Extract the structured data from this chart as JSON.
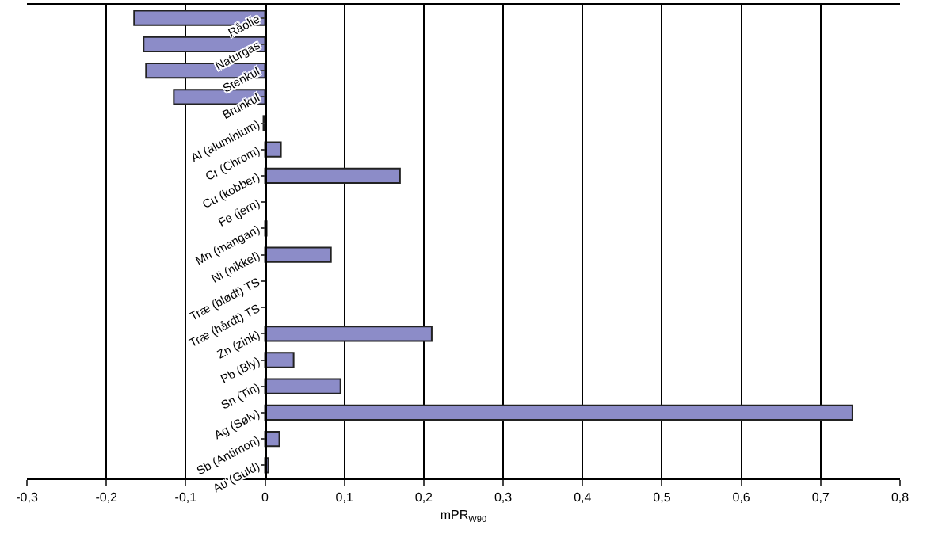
{
  "chart_data": {
    "type": "bar",
    "orientation": "horizontal",
    "xlabel": "mPR$_{W90}$",
    "categories": [
      "Råolie",
      "Naturgas",
      "Stenkul",
      "Brunkul",
      "Al (aluminium)",
      "Cr (Chrom)",
      "Cu (kobber)",
      "Fe (jern)",
      "Mn (mangan)",
      "Ni (nikkel)",
      "Træ (blødt) TS",
      "Træ (hårdt) TS",
      "Zn (zink)",
      "Pb (Bly)",
      "Sn (Tin)",
      "Ag (Sølv)",
      "Sb (Antimon)",
      "Au (Guld)"
    ],
    "values": [
      -0.165,
      -0.153,
      -0.15,
      -0.115,
      -0.002,
      0.02,
      0.17,
      null,
      0.002,
      0.083,
      null,
      null,
      0.21,
      0.036,
      0.095,
      0.74,
      0.018,
      0.004
    ],
    "color": "#8c8cc8",
    "xlim": [
      -0.3,
      0.8
    ],
    "xticks": [
      {
        "value": -0.3,
        "label": "-0,3"
      },
      {
        "value": -0.2,
        "label": "-0,2"
      },
      {
        "value": -0.1,
        "label": "-0,1"
      },
      0,
      {
        "value": 0.1,
        "label": "0,1"
      },
      {
        "value": 0.2,
        "label": "0,2"
      },
      {
        "value": 0.3,
        "label": "0,3"
      },
      {
        "value": 0.4,
        "label": "0,4"
      },
      {
        "value": 0.5,
        "label": "0,5"
      },
      {
        "value": 0.6,
        "label": "0,6"
      },
      {
        "value": 0.7,
        "label": "0,7"
      },
      {
        "value": 0.8,
        "label": "0,8"
      }
    ],
    "grid": "x"
  }
}
